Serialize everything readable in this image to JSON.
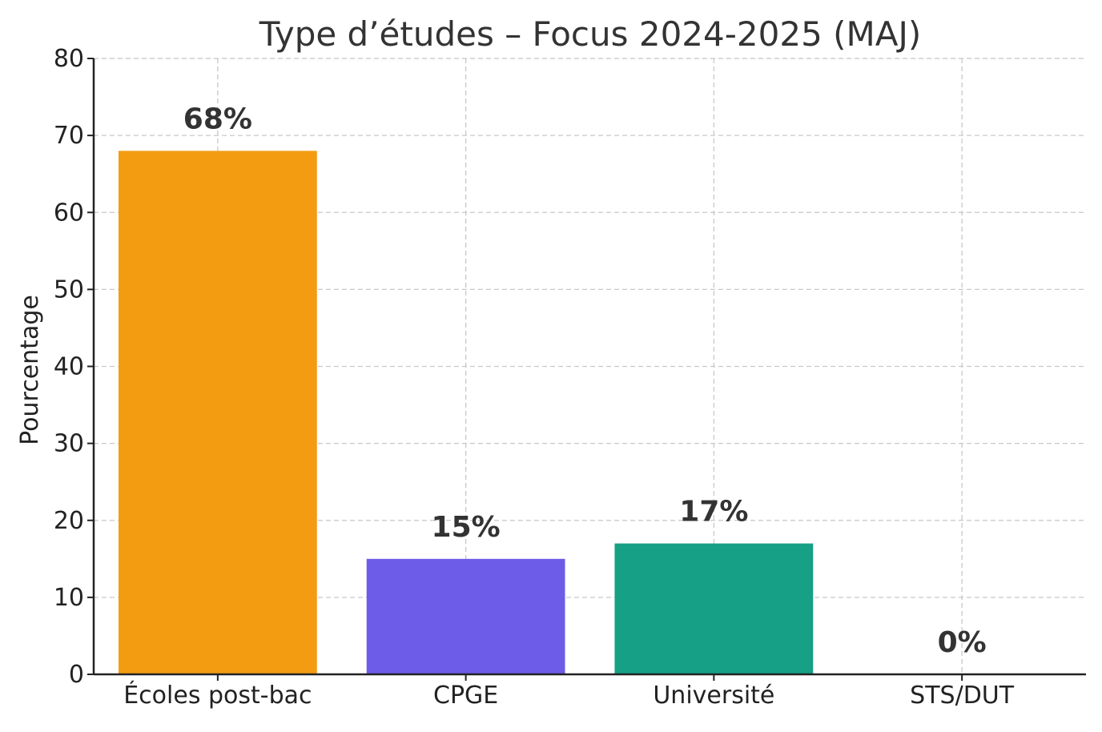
{
  "chart_data": {
    "type": "bar",
    "title": "Type d’études – Focus 2024-2025 (MAJ)",
    "xlabel": "",
    "ylabel": "Pourcentage",
    "categories": [
      "Écoles post-bac",
      "CPGE",
      "Université",
      "STS/DUT"
    ],
    "values": [
      68,
      15,
      17,
      0
    ],
    "data_labels": [
      "68%",
      "15%",
      "17%",
      "0%"
    ],
    "colors": [
      "#f39c12",
      "#6c5ce7",
      "#16a085",
      "#16a085"
    ],
    "ylim": [
      0,
      80
    ],
    "yticks": [
      0,
      10,
      20,
      30,
      40,
      50,
      60,
      70,
      80
    ],
    "grid": true,
    "legend": "none"
  }
}
